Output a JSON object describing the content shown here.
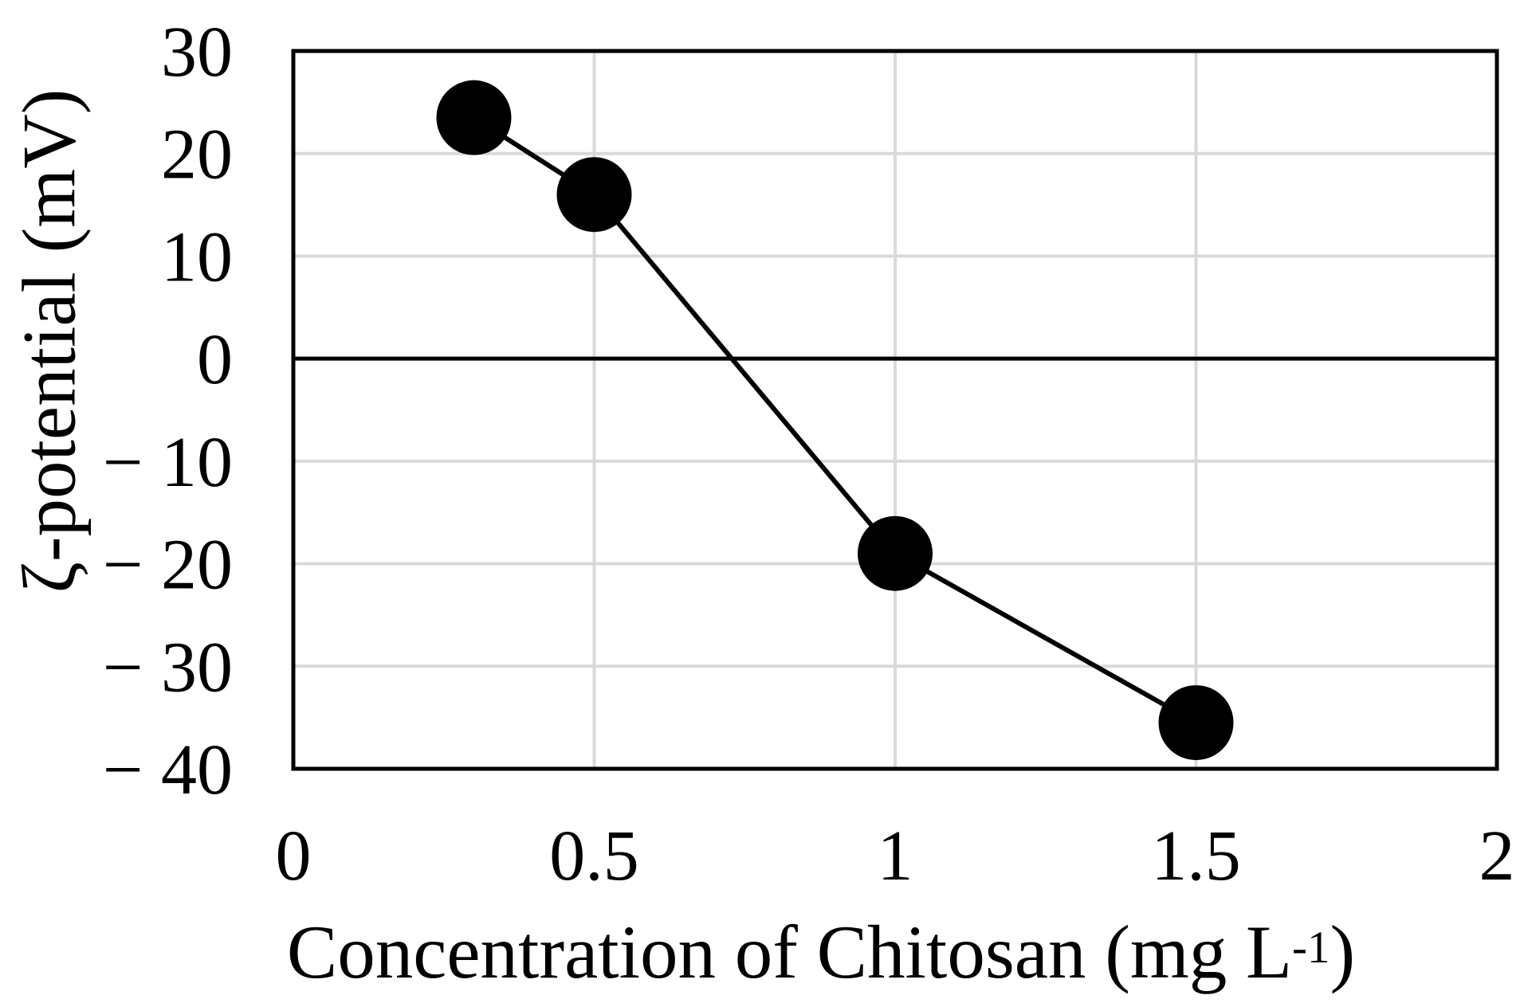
{
  "chart_data": {
    "type": "line",
    "title": "",
    "xlabel": "Concentration of Chitosan (mg L⁻¹)",
    "xlabel_parts": {
      "prefix": "Concentration of Chitosan (mg L",
      "superscript": "-1",
      "suffix": ")"
    },
    "ylabel": "ζ-potential (mV)",
    "xlim": [
      0,
      2
    ],
    "ylim": [
      -40,
      30
    ],
    "x_ticks": [
      {
        "value": 0,
        "label": "0"
      },
      {
        "value": 0.5,
        "label": "0.5"
      },
      {
        "value": 1,
        "label": "1"
      },
      {
        "value": 1.5,
        "label": "1.5"
      },
      {
        "value": 2,
        "label": "2"
      }
    ],
    "y_ticks": [
      {
        "value": 30,
        "label": "30"
      },
      {
        "value": 20,
        "label": "20"
      },
      {
        "value": 10,
        "label": "10"
      },
      {
        "value": 0,
        "label": "0"
      },
      {
        "value": -10,
        "label": "− 10"
      },
      {
        "value": -20,
        "label": "− 20"
      },
      {
        "value": -30,
        "label": "− 30"
      },
      {
        "value": -40,
        "label": "− 40"
      }
    ],
    "series": [
      {
        "name": "zeta-potential-vs-chitosan",
        "x": [
          0.3,
          0.5,
          1.0,
          1.5
        ],
        "y": [
          23.5,
          16,
          -19,
          -35.5
        ],
        "marker": "filled-circle",
        "marker_color": "#000000",
        "line_color": "#000000"
      }
    ],
    "grid": {
      "horizontal": true,
      "vertical": true,
      "color": "#d9d9d9"
    },
    "zero_line_color": "#000000",
    "axis_color": "#000000",
    "background": "#ffffff",
    "legend": "none"
  }
}
